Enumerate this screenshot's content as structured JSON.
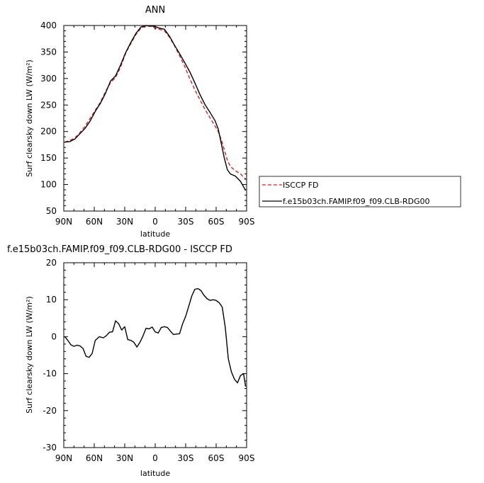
{
  "chart_data": [
    {
      "type": "line",
      "title": "ANN",
      "xlabel": "latitude",
      "ylabel": "Surf clearsky down LW (W/m²)",
      "x_ticks": [
        "90N",
        "60N",
        "30N",
        "0",
        "30S",
        "60S",
        "90S"
      ],
      "xlim": [
        90,
        -90
      ],
      "ylim": [
        50,
        400
      ],
      "y_ticks": [
        50,
        100,
        150,
        200,
        250,
        300,
        350,
        400
      ],
      "legend_position": "right",
      "series": [
        {
          "name": "ISCCP FD",
          "color": "#e41a1c",
          "style": "dashed",
          "x": [
            89,
            84,
            79,
            74,
            69,
            64,
            59,
            54,
            49,
            44,
            39,
            34,
            29,
            24,
            19,
            14,
            9,
            4,
            0,
            -4,
            -9,
            -14,
            -19,
            -24,
            -29,
            -34,
            -39,
            -44,
            -49,
            -54,
            -59,
            -62,
            -65,
            -68,
            -71,
            -74,
            -79,
            -84,
            -89
          ],
          "y": [
            180,
            183,
            188,
            198,
            210,
            225,
            240,
            255,
            275,
            292,
            302,
            322,
            348,
            366,
            383,
            395,
            399,
            398,
            395,
            393,
            390,
            378,
            362,
            343,
            323,
            300,
            279,
            260,
            242,
            226,
            210,
            200,
            185,
            166,
            146,
            134,
            126,
            120,
            110
          ]
        },
        {
          "name": "f.e15b03ch.FAMIP.f09_f09.CLB-RDG00",
          "color": "#000000",
          "style": "solid",
          "x": [
            89,
            84,
            79,
            74,
            69,
            64,
            59,
            54,
            49,
            44,
            39,
            34,
            29,
            24,
            19,
            14,
            9,
            4,
            0,
            -4,
            -9,
            -14,
            -19,
            -24,
            -29,
            -34,
            -39,
            -44,
            -49,
            -54,
            -59,
            -62,
            -65,
            -68,
            -71,
            -74,
            -79,
            -84,
            -89
          ],
          "y": [
            180,
            181,
            186,
            196,
            206,
            220,
            238,
            253,
            272,
            295,
            305,
            326,
            349,
            368,
            385,
            397,
            400,
            399,
            398,
            395,
            393,
            380,
            363,
            347,
            330,
            313,
            292,
            270,
            251,
            236,
            220,
            205,
            178,
            150,
            128,
            120,
            116,
            106,
            89
          ]
        }
      ]
    },
    {
      "type": "line",
      "title": "f.e15b03ch.FAMIP.f09_f09.CLB-RDG00 - ISCCP FD",
      "xlabel": "latitude",
      "ylabel": "Surf clearsky down LW (W/m²)",
      "x_ticks": [
        "90N",
        "60N",
        "30N",
        "0",
        "30S",
        "60S",
        "90S"
      ],
      "xlim": [
        90,
        -90
      ],
      "ylim": [
        -30,
        20
      ],
      "y_ticks": [
        -30,
        -20,
        -10,
        0,
        10,
        20
      ],
      "series": [
        {
          "name": "",
          "color": "#000000",
          "style": "solid",
          "x": [
            89,
            86,
            83,
            80,
            77,
            74,
            71,
            68,
            65,
            62,
            59,
            55,
            51,
            48,
            45,
            42,
            39,
            36,
            33,
            30,
            27,
            24,
            21,
            18,
            15,
            12,
            9,
            6,
            3,
            0,
            -3,
            -6,
            -9,
            -12,
            -15,
            -18,
            -21,
            -24,
            -27,
            -30,
            -33,
            -36,
            -39,
            -42,
            -45,
            -48,
            -51,
            -54,
            -57,
            -60,
            -63,
            -66,
            -69,
            -72,
            -75,
            -78,
            -81,
            -84,
            -87,
            -89
          ],
          "y": [
            0,
            -1,
            -2.2,
            -2.6,
            -2.3,
            -2.5,
            -3.2,
            -5.3,
            -5.6,
            -4.5,
            -1,
            0,
            -0.3,
            0.3,
            1.2,
            1.3,
            4.3,
            3.5,
            1.8,
            2.7,
            -0.8,
            -1,
            -1.5,
            -2.8,
            -1.5,
            0.2,
            2.3,
            2.1,
            2.6,
            1.3,
            1,
            2.5,
            2.7,
            2.5,
            1.5,
            0.6,
            0.7,
            0.8,
            3.5,
            5.5,
            8.2,
            11,
            12.8,
            13,
            12.5,
            11.2,
            10.3,
            9.8,
            10,
            9.8,
            9.2,
            8,
            2.5,
            -6,
            -9.5,
            -11.5,
            -12.5,
            -10.5,
            -10,
            -13.5
          ]
        }
      ]
    }
  ]
}
